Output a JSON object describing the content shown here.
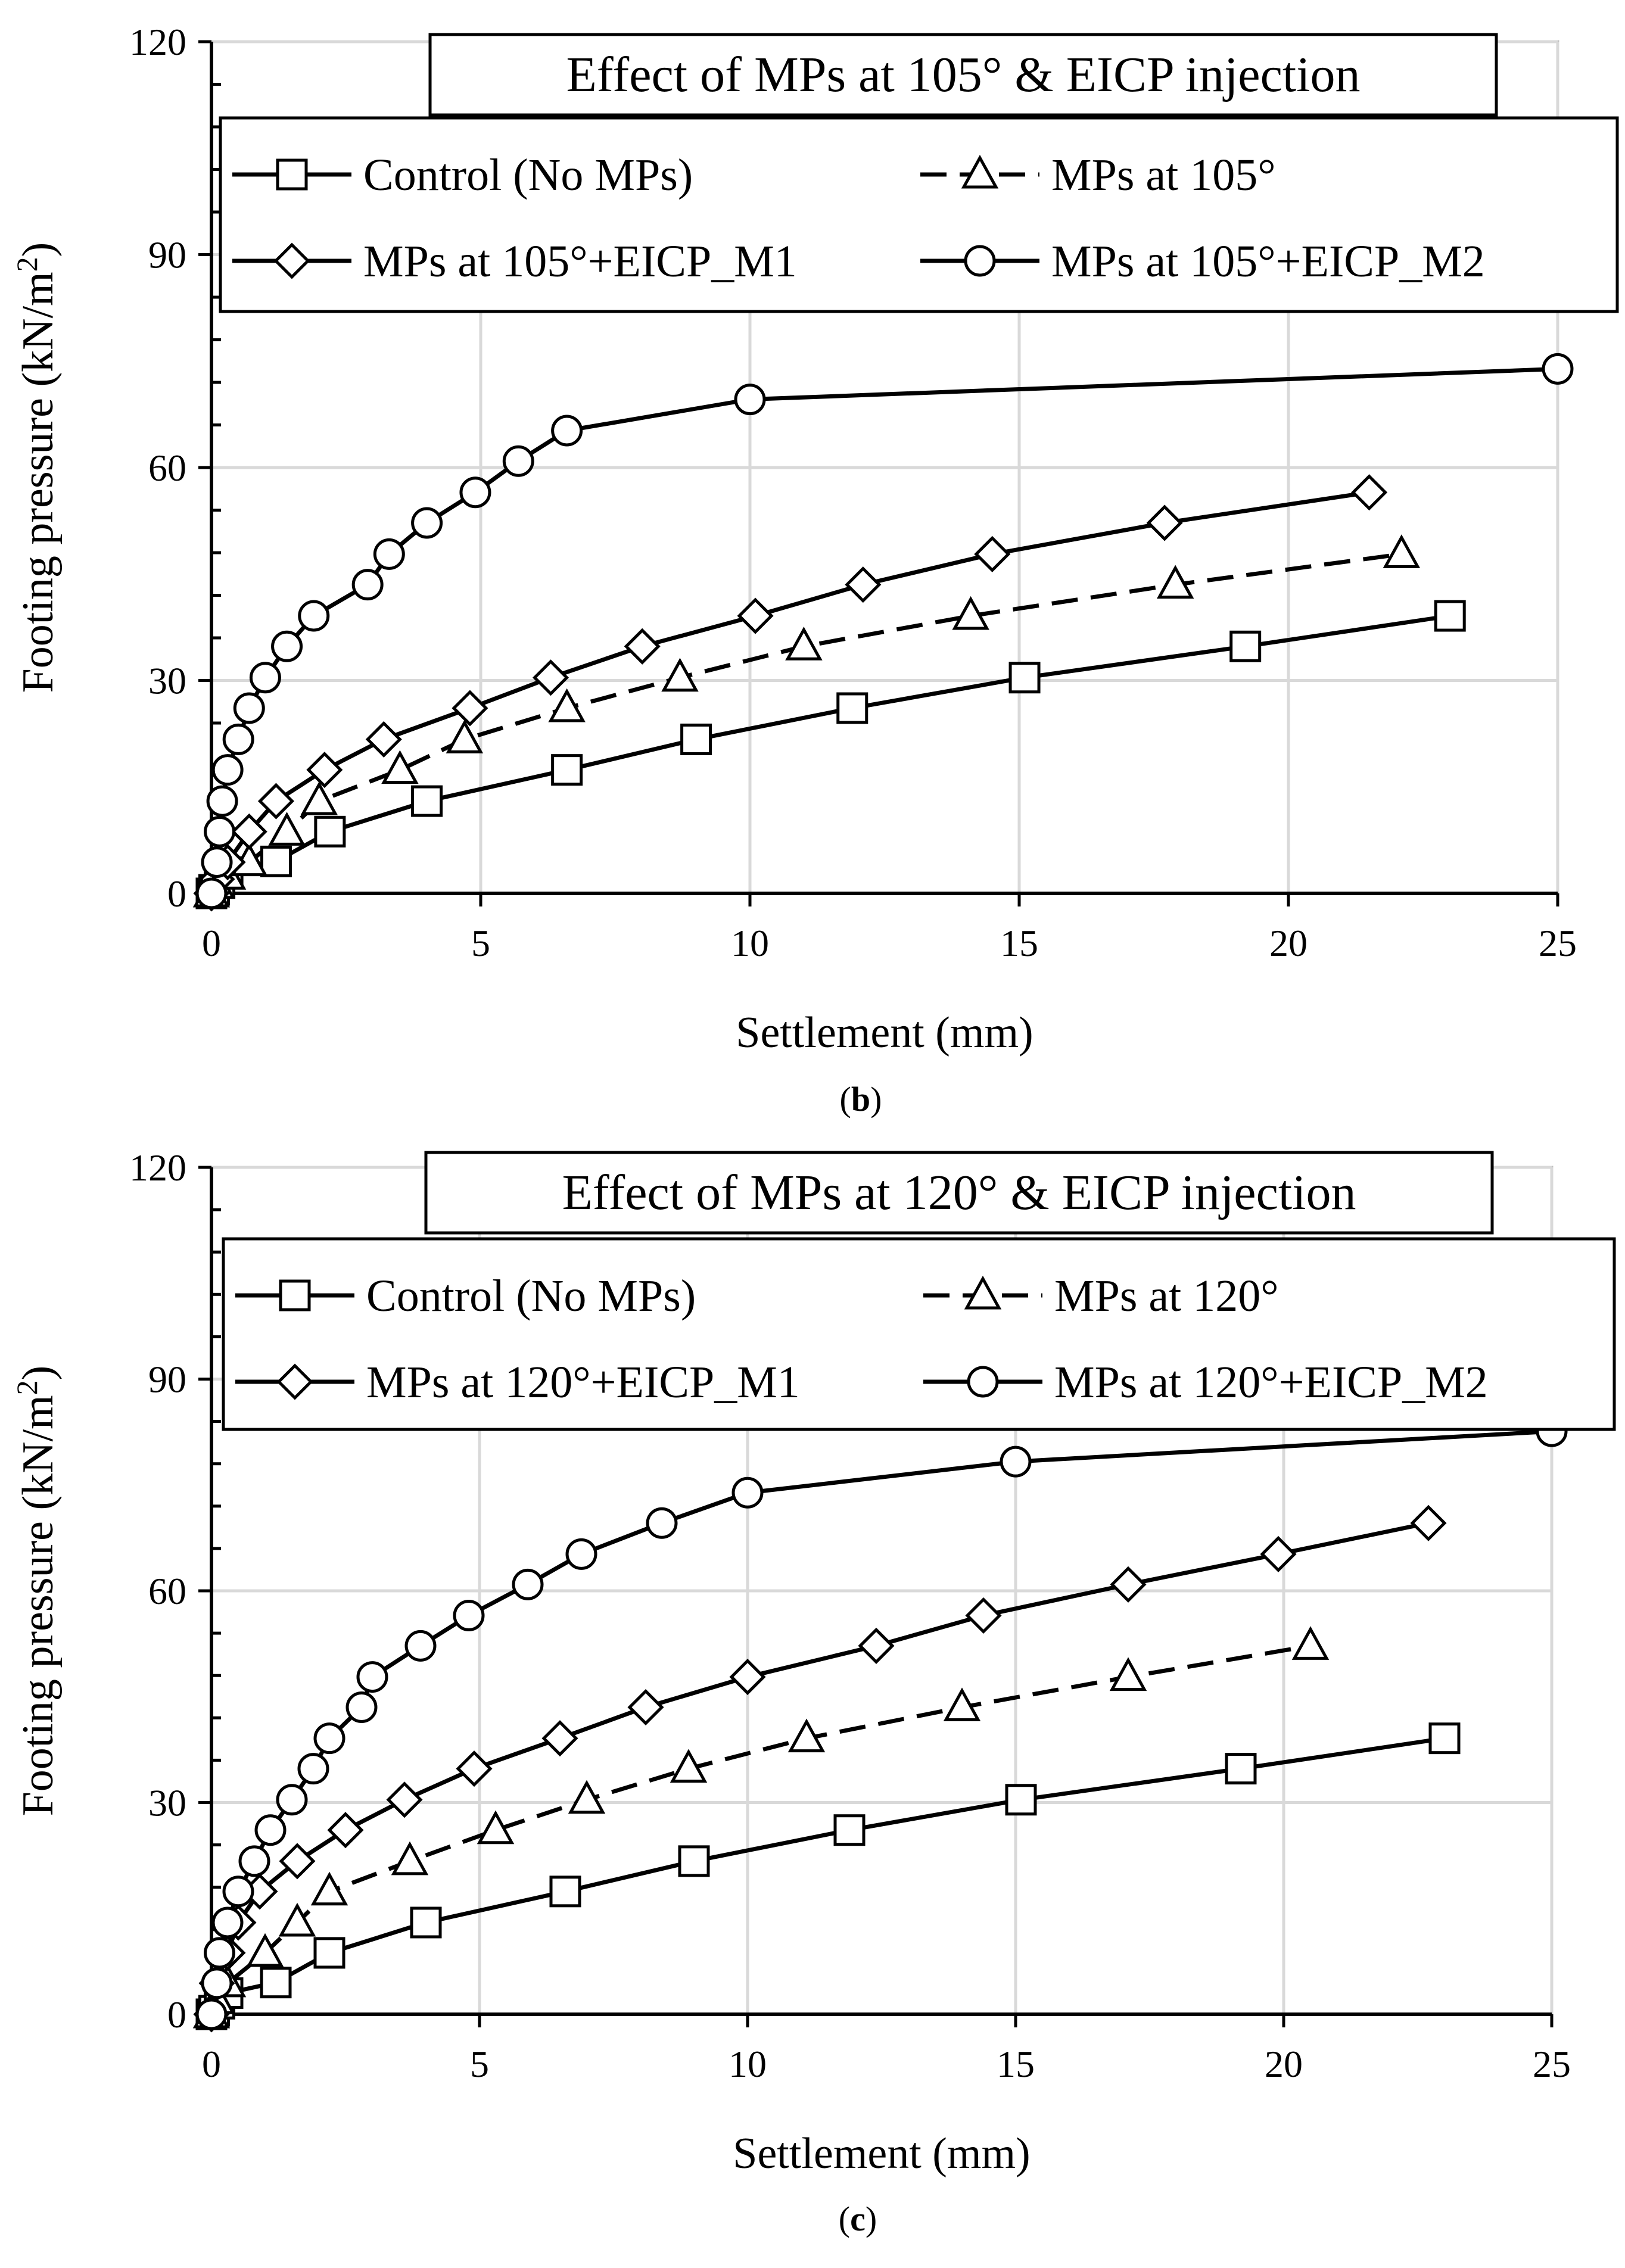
{
  "chart_data": [
    {
      "type": "line",
      "title": "Effect of MPs at 105° & EICP injection",
      "caption_letter": "b",
      "xlabel": "Settlement (mm)",
      "ylabel_main": "Footing pressure (kN/m",
      "ylabel_sup": "2",
      "ylabel_close": ")",
      "xlim": [
        0,
        25
      ],
      "ylim": [
        0,
        120
      ],
      "x_ticks": [
        0,
        5,
        10,
        15,
        20,
        25
      ],
      "y_ticks": [
        0,
        30,
        60,
        90,
        120
      ],
      "y_tick_labels": [
        "0",
        "30",
        "60",
        "90",
        "120"
      ],
      "x_tick_labels": [
        "0",
        "5",
        "10",
        "15",
        "20",
        "25"
      ],
      "grid": true,
      "legend_position": "top",
      "series": [
        {
          "name": "Control (No MPs)",
          "marker": "square",
          "dash": "solid",
          "x": [
            0,
            0.05,
            0.15,
            0.3,
            1.2,
            2.2,
            4.0,
            6.6,
            9.0,
            11.9,
            15.1,
            19.2,
            23.0
          ],
          "y": [
            0,
            0.5,
            1.5,
            3,
            4.5,
            8.7,
            13,
            17.4,
            21.7,
            26.1,
            30.4,
            34.8,
            39.1
          ]
        },
        {
          "name": "MPs at 105°",
          "marker": "triangle",
          "dash": "dashed",
          "x": [
            0,
            0.1,
            0.3,
            0.7,
            1.4,
            2.0,
            3.5,
            4.7,
            6.6,
            8.7,
            11.0,
            14.1,
            17.9,
            22.1
          ],
          "y": [
            0,
            1.2,
            2.5,
            4.4,
            8.7,
            13,
            17.4,
            21.7,
            26.1,
            30.4,
            34.8,
            39.1,
            43.5,
            47.8
          ]
        },
        {
          "name": "MPs at 105°+EICP_M1",
          "marker": "diamond",
          "dash": "solid",
          "x": [
            0,
            0.1,
            0.3,
            0.7,
            1.2,
            2.1,
            3.2,
            4.8,
            6.3,
            8.0,
            10.1,
            12.1,
            14.5,
            17.7,
            21.5
          ],
          "y": [
            0,
            2,
            4.4,
            8.7,
            13,
            17.4,
            21.7,
            26.1,
            30.4,
            34.8,
            39.1,
            43.5,
            47.8,
            52.2,
            56.5
          ]
        },
        {
          "name": "MPs at 105°+EICP_M2",
          "marker": "circle",
          "dash": "solid",
          "x": [
            0,
            0.1,
            0.15,
            0.2,
            0.3,
            0.5,
            0.7,
            1.0,
            1.4,
            1.9,
            2.9,
            3.3,
            4.0,
            4.9,
            5.7,
            6.6,
            10.0,
            25.0
          ],
          "y": [
            0,
            4.4,
            8.7,
            13,
            17.4,
            21.7,
            26.1,
            30.4,
            34.8,
            39.1,
            43.5,
            47.8,
            52.2,
            56.5,
            60.9,
            65.2,
            69.6,
            73.9
          ]
        }
      ]
    },
    {
      "type": "line",
      "title": "Effect of MPs at 120° & EICP injection",
      "caption_letter": "c",
      "xlabel": "Settlement (mm)",
      "ylabel_main": "Footing pressure (kN/m",
      "ylabel_sup": "2",
      "ylabel_close": ")",
      "xlim": [
        0,
        25
      ],
      "ylim": [
        0,
        120
      ],
      "x_ticks": [
        0,
        5,
        10,
        15,
        20,
        25
      ],
      "y_ticks": [
        0,
        30,
        60,
        90,
        120
      ],
      "y_tick_labels": [
        "0",
        "30",
        "60",
        "90",
        "120"
      ],
      "x_tick_labels": [
        "0",
        "5",
        "10",
        "15",
        "20",
        "25"
      ],
      "grid": true,
      "legend_position": "top",
      "series": [
        {
          "name": "Control (No MPs)",
          "marker": "square",
          "dash": "solid",
          "x": [
            0,
            0.05,
            0.15,
            0.3,
            1.2,
            2.2,
            4.0,
            6.6,
            9.0,
            11.9,
            15.1,
            19.2,
            23.0
          ],
          "y": [
            0,
            0.5,
            1.5,
            3,
            4.5,
            8.7,
            13,
            17.4,
            21.7,
            26.1,
            30.4,
            34.8,
            39.1
          ]
        },
        {
          "name": "MPs at 120°",
          "marker": "triangle",
          "dash": "dashed",
          "x": [
            0,
            0.1,
            0.3,
            1.0,
            1.6,
            2.2,
            3.7,
            5.3,
            7.0,
            8.9,
            11.1,
            14.0,
            17.1,
            20.5
          ],
          "y": [
            0,
            2,
            4.4,
            8.7,
            13,
            17.4,
            21.7,
            26.1,
            30.4,
            34.8,
            39.1,
            43.5,
            47.8,
            52.2
          ]
        },
        {
          "name": "MPs at 120°+EICP_M1",
          "marker": "diamond",
          "dash": "solid",
          "x": [
            0,
            0.1,
            0.3,
            0.5,
            0.9,
            1.6,
            2.5,
            3.6,
            4.9,
            6.5,
            8.1,
            10.0,
            12.4,
            14.4,
            17.1,
            19.9,
            22.7
          ],
          "y": [
            0,
            4.4,
            8.7,
            13,
            17.4,
            21.7,
            26.1,
            30.4,
            34.8,
            39.1,
            43.5,
            47.8,
            52.2,
            56.5,
            60.9,
            65.2,
            69.6
          ]
        },
        {
          "name": "MPs at 120°+EICP_M2",
          "marker": "circle",
          "dash": "solid",
          "x": [
            0,
            0.1,
            0.15,
            0.3,
            0.5,
            0.8,
            1.1,
            1.5,
            1.9,
            2.2,
            2.8,
            3.0,
            3.9,
            4.8,
            5.9,
            6.9,
            8.4,
            10.0,
            15.0,
            25.0
          ],
          "y": [
            0,
            4.4,
            8.7,
            13,
            17.4,
            21.7,
            26.1,
            30.4,
            34.8,
            39.1,
            43.5,
            47.8,
            52.2,
            56.5,
            60.9,
            65.2,
            69.6,
            73.9,
            78.3,
            82.6
          ]
        }
      ]
    }
  ]
}
